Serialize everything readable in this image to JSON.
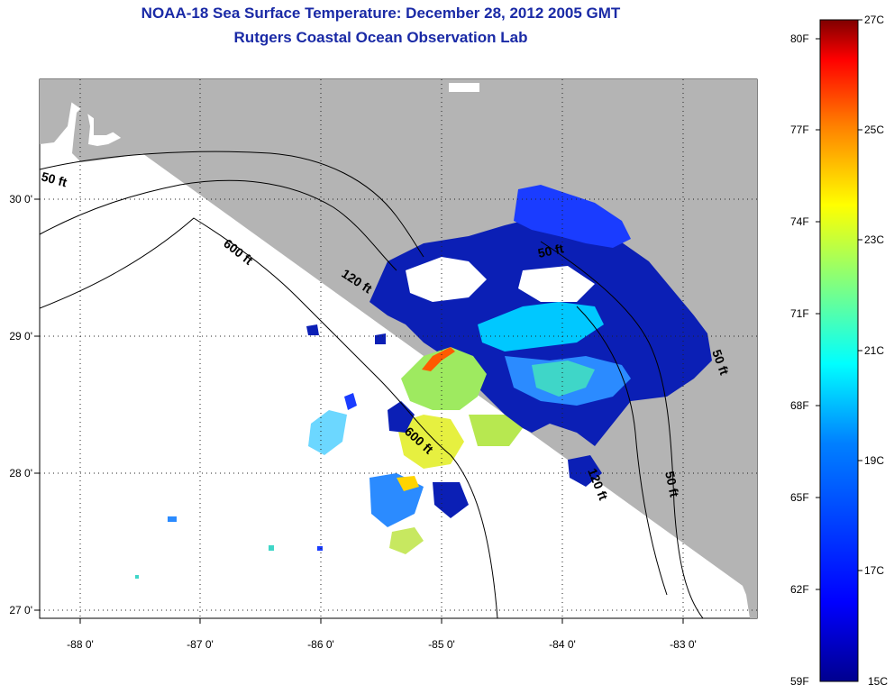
{
  "header": {
    "title": "NOAA-18 Sea Surface Temperature:  December 28, 2012 2005 GMT",
    "subtitle": "Rutgers Coastal Ocean Observation Lab"
  },
  "map": {
    "lon_ticks": [
      "-88 0'",
      "-87 0'",
      "-86 0'",
      "-85 0'",
      "-84 0'",
      "-83 0'"
    ],
    "lat_ticks": [
      "30 0'",
      "29 0'",
      "28 0'",
      "27 0'"
    ],
    "contours": [
      "50 ft",
      "600 ft",
      "120 ft",
      "50 ft",
      "600 ft",
      "120 ft",
      "50 ft",
      "50 ft"
    ],
    "colors": {
      "land": "#b4b4b4",
      "sea": "#ffffff"
    }
  },
  "colorbar": {
    "f_labels": [
      "80F",
      "77F",
      "74F",
      "71F",
      "68F",
      "65F",
      "62F",
      "59F"
    ],
    "c_labels": [
      "27C",
      "25C",
      "23C",
      "21C",
      "19C",
      "17C",
      "15C"
    ],
    "colors": [
      "#7f0000",
      "#ff0000",
      "#ff8000",
      "#ffff00",
      "#80ff80",
      "#00ffff",
      "#0080ff",
      "#0000ff",
      "#00008f"
    ]
  }
}
